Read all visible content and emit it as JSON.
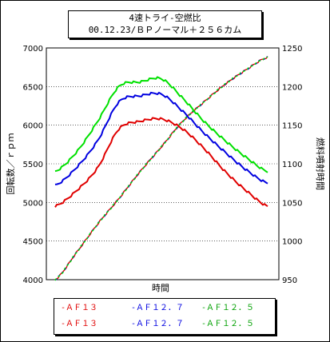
{
  "chart_data": {
    "type": "line",
    "title": "4速トライ-空燃比",
    "subtitle": "00.12.23/ＢＰノーマル＋２５６カム",
    "xlabel": "時間",
    "ylabel_left": "回転数／ｒｐｍ",
    "ylabel_right": "燃料噴射時間",
    "ylim_left": [
      4000,
      7000
    ],
    "yticks_left": [
      "4000",
      "4500",
      "5000",
      "5500",
      "6000",
      "6500",
      "7000"
    ],
    "ylim_right": [
      950,
      1250
    ],
    "yticks_right": [
      "950",
      "1000",
      "1050",
      "1100",
      "1150",
      "1200",
      "1250"
    ],
    "grid": true,
    "legend_placement": "bottom",
    "rpm_x": [
      0,
      0.1,
      0.2,
      0.3,
      0.4,
      0.5,
      0.6,
      0.7,
      0.8,
      0.9,
      1.0
    ],
    "series": [
      {
        "name": "ＡＦ１３",
        "axis": "left",
        "color": "#e00000",
        "values": [
          4950,
          5150,
          5450,
          5950,
          6050,
          6080,
          5950,
          5700,
          5400,
          5150,
          4950
        ]
      },
      {
        "name": "ＡＦ１２．７",
        "axis": "left",
        "color": "#0000e0",
        "values": [
          5220,
          5450,
          5800,
          6300,
          6380,
          6400,
          6180,
          5900,
          5650,
          5420,
          5250
        ]
      },
      {
        "name": "ＡＦ１２．５",
        "axis": "left",
        "color": "#00e000",
        "values": [
          5400,
          5650,
          6050,
          6500,
          6560,
          6600,
          6350,
          6050,
          5800,
          5580,
          5400
        ]
      },
      {
        "name": "ＡＦ１３",
        "axis": "right",
        "color": "#e00000",
        "values": [
          950,
          985,
          1022,
          1055,
          1090,
          1122,
          1155,
          1180,
          1203,
          1222,
          1238
        ]
      },
      {
        "name": "ＡＦ１２．７",
        "axis": "right",
        "color": "#0000e0",
        "values": [
          950,
          985,
          1022,
          1055,
          1090,
          1122,
          1155,
          1180,
          1203,
          1222,
          1238
        ]
      },
      {
        "name": "ＡＦ１２．５",
        "axis": "right",
        "color": "#00e000",
        "values": [
          950,
          985,
          1022,
          1055,
          1090,
          1122,
          1155,
          1180,
          1203,
          1222,
          1238
        ]
      }
    ]
  },
  "legend": {
    "row1": [
      "ＡＦ１３",
      "ＡＦ１２．７",
      "ＡＦ１２．５"
    ],
    "row2": [
      "ＡＦ１３",
      "ＡＦ１２．７",
      "ＡＦ１２．５"
    ]
  }
}
